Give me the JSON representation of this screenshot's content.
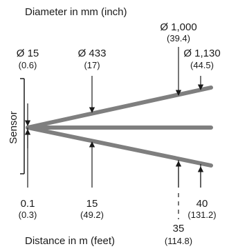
{
  "header": {
    "diameter_label": "Diameter in mm (inch)"
  },
  "footer": {
    "distance_label": "Distance in m (feet)"
  },
  "sensor": {
    "label": "Sensor"
  },
  "diameters": [
    {
      "value": "Ø 15",
      "unit_alt": "(0.6)"
    },
    {
      "value": "Ø 433",
      "unit_alt": "(17)"
    },
    {
      "value": "Ø 1,000",
      "unit_alt": "(39.4)"
    },
    {
      "value": "Ø 1,130",
      "unit_alt": "(44.5)"
    }
  ],
  "distances": [
    {
      "value": "0.1",
      "unit_alt": "(0.3)"
    },
    {
      "value": "15",
      "unit_alt": "(49.2)"
    },
    {
      "value": "35",
      "unit_alt": "(114.8)"
    },
    {
      "value": "40",
      "unit_alt": "(131.2)"
    }
  ],
  "colors": {
    "beam": "#7f7f7f",
    "line": "#1a1a1a",
    "text": "#1a1a1a"
  }
}
